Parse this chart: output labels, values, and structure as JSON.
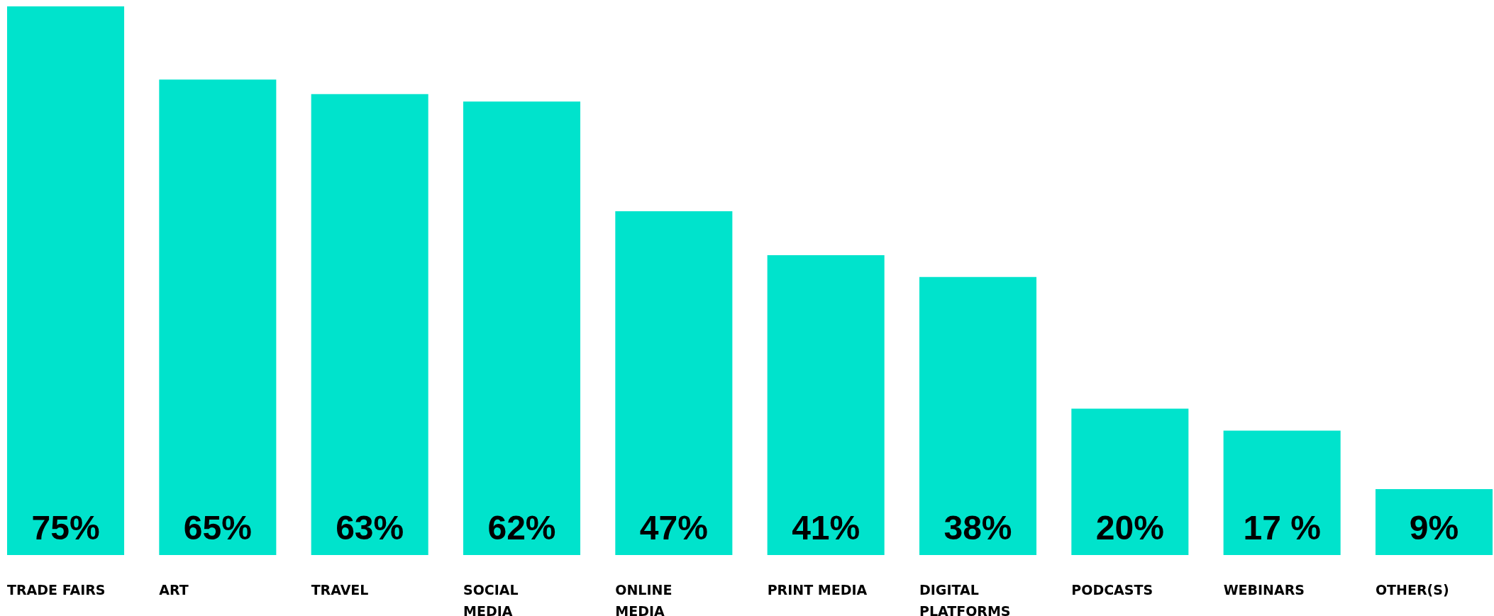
{
  "chart_data": {
    "type": "bar",
    "categories": [
      "TRADE FAIRS",
      "ART",
      "TRAVEL",
      "SOCIAL MEDIA",
      "ONLINE MEDIA",
      "PRINT MEDIA",
      "DIGITAL PLATFORMS",
      "PODCASTS",
      "WEBINARS",
      "OTHER(S)"
    ],
    "values": [
      75,
      65,
      63,
      62,
      47,
      41,
      38,
      20,
      17,
      9
    ],
    "value_labels": [
      "75%",
      "65%",
      "63%",
      "62%",
      "47%",
      "41%",
      "38%",
      "20%",
      "17 %",
      "9%"
    ],
    "color": "#00e3cc",
    "grid": false
  }
}
